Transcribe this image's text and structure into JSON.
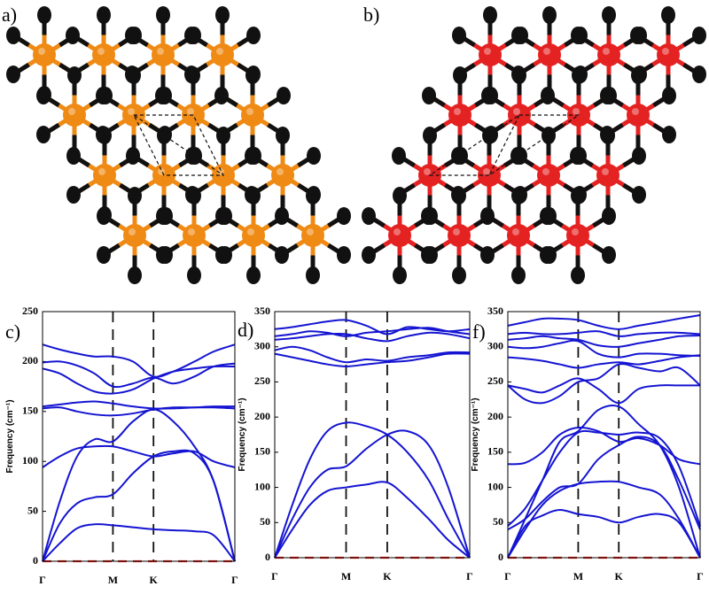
{
  "panels": {
    "a": "a)",
    "b": "b)"
  },
  "chart_data": [
    {
      "type": "line",
      "panel_label": "c)",
      "ylabel": "Frequency (cm⁻¹)",
      "x": [
        0,
        0.09,
        0.18,
        0.27,
        0.366,
        0.47,
        0.577,
        0.68,
        0.79,
        0.89,
        1
      ],
      "xlim": [
        0,
        1
      ],
      "xticks": [
        {
          "value": 0,
          "label": "Γ"
        },
        {
          "value": 0.366,
          "label": "M"
        },
        {
          "value": 0.577,
          "label": "K"
        },
        {
          "value": 1,
          "label": "Γ"
        }
      ],
      "ylim": [
        0,
        250
      ],
      "yticks": [
        0,
        50,
        100,
        150,
        200,
        250
      ],
      "zero_line_color": "#e8261e",
      "series": [
        {
          "color": "#1414d2",
          "values": [
            0,
            18,
            33,
            37,
            36,
            34,
            32,
            31,
            30,
            26,
            0
          ]
        },
        {
          "color": "#1414d2",
          "values": [
            0,
            38,
            58,
            64,
            67,
            88,
            105,
            110,
            108,
            80,
            0
          ]
        },
        {
          "color": "#1414d2",
          "values": [
            0,
            60,
            105,
            122,
            120,
            140,
            152,
            140,
            115,
            80,
            0
          ]
        },
        {
          "color": "#1414d2",
          "values": [
            94,
            105,
            113,
            115,
            115,
            110,
            105,
            108,
            110,
            100,
            94
          ]
        },
        {
          "color": "#1414d2",
          "values": [
            153,
            154,
            150,
            147,
            146,
            148,
            152,
            154,
            154,
            154,
            153
          ]
        },
        {
          "color": "#1414d2",
          "values": [
            155,
            157,
            159,
            160,
            158,
            155,
            153,
            153,
            154,
            155,
            155
          ]
        },
        {
          "color": "#1414d2",
          "values": [
            193,
            188,
            178,
            170,
            168,
            172,
            183,
            190,
            193,
            195,
            195
          ]
        },
        {
          "color": "#1414d2",
          "values": [
            199,
            200,
            196,
            188,
            175,
            178,
            184,
            178,
            185,
            195,
            198
          ]
        },
        {
          "color": "#1414d2",
          "values": [
            217,
            212,
            208,
            205,
            205,
            200,
            185,
            190,
            200,
            210,
            217
          ]
        }
      ]
    },
    {
      "type": "line",
      "panel_label": "d)",
      "ylabel": "Frequency (cm⁻¹)",
      "x": [
        0,
        0.09,
        0.18,
        0.27,
        0.366,
        0.47,
        0.577,
        0.68,
        0.79,
        0.89,
        1
      ],
      "xlim": [
        0,
        1
      ],
      "xticks": [
        {
          "value": 0,
          "label": "Γ"
        },
        {
          "value": 0.366,
          "label": "M"
        },
        {
          "value": 0.577,
          "label": "K"
        },
        {
          "value": 1,
          "label": "Γ"
        }
      ],
      "ylim": [
        0,
        350
      ],
      "yticks": [
        0,
        50,
        100,
        150,
        200,
        250,
        300,
        350
      ],
      "zero_line_color": "#e8261e",
      "series": [
        {
          "color": "#1414d2",
          "values": [
            0,
            40,
            75,
            95,
            100,
            104,
            107,
            85,
            55,
            25,
            0
          ]
        },
        {
          "color": "#1414d2",
          "values": [
            0,
            55,
            100,
            125,
            130,
            155,
            175,
            180,
            160,
            100,
            0
          ]
        },
        {
          "color": "#1414d2",
          "values": [
            0,
            75,
            140,
            180,
            192,
            187,
            175,
            150,
            110,
            55,
            0
          ]
        },
        {
          "color": "#1414d2",
          "values": [
            290,
            285,
            280,
            275,
            272,
            275,
            278,
            280,
            285,
            290,
            290
          ]
        },
        {
          "color": "#1414d2",
          "values": [
            295,
            300,
            295,
            285,
            278,
            282,
            280,
            285,
            288,
            292,
            292
          ]
        },
        {
          "color": "#1414d2",
          "values": [
            310,
            312,
            315,
            318,
            318,
            312,
            308,
            315,
            320,
            318,
            312
          ]
        },
        {
          "color": "#1414d2",
          "values": [
            315,
            318,
            322,
            320,
            315,
            320,
            322,
            325,
            327,
            322,
            318
          ]
        },
        {
          "color": "#1414d2",
          "values": [
            325,
            328,
            332,
            336,
            338,
            330,
            318,
            328,
            325,
            322,
            325
          ]
        }
      ]
    },
    {
      "type": "line",
      "panel_label": "f)",
      "ylabel": "Frequency (cm⁻¹)",
      "x": [
        0,
        0.09,
        0.18,
        0.27,
        0.366,
        0.47,
        0.577,
        0.68,
        0.79,
        0.89,
        1
      ],
      "xlim": [
        0,
        1
      ],
      "xticks": [
        {
          "value": 0,
          "label": "Γ"
        },
        {
          "value": 0.366,
          "label": "M"
        },
        {
          "value": 0.577,
          "label": "K"
        },
        {
          "value": 1,
          "label": "Γ"
        }
      ],
      "ylim": [
        0,
        350
      ],
      "yticks": [
        0,
        50,
        100,
        150,
        200,
        250,
        300,
        350
      ],
      "zero_line_color": "#e8261e",
      "series": [
        {
          "color": "#1414d2",
          "values": [
            0,
            45,
            60,
            68,
            62,
            58,
            50,
            58,
            62,
            50,
            0
          ]
        },
        {
          "color": "#1414d2",
          "values": [
            0,
            40,
            75,
            95,
            105,
            108,
            108,
            100,
            90,
            55,
            0
          ]
        },
        {
          "color": "#1414d2",
          "values": [
            0,
            55,
            110,
            165,
            180,
            210,
            215,
            190,
            160,
            100,
            0
          ]
        },
        {
          "color": "#1414d2",
          "values": [
            40,
            55,
            80,
            100,
            105,
            140,
            160,
            172,
            160,
            110,
            40
          ]
        },
        {
          "color": "#1414d2",
          "values": [
            45,
            70,
            110,
            150,
            178,
            178,
            175,
            178,
            170,
            130,
            45
          ]
        },
        {
          "color": "#1414d2",
          "values": [
            133,
            135,
            150,
            175,
            185,
            180,
            165,
            170,
            160,
            140,
            133
          ]
        },
        {
          "color": "#1414d2",
          "values": [
            245,
            240,
            235,
            245,
            255,
            240,
            220,
            240,
            245,
            245,
            245
          ]
        },
        {
          "color": "#1414d2",
          "values": [
            245,
            225,
            220,
            230,
            250,
            255,
            275,
            270,
            265,
            270,
            245
          ]
        },
        {
          "color": "#1414d2",
          "values": [
            285,
            283,
            280,
            275,
            270,
            275,
            278,
            275,
            280,
            285,
            288
          ]
        },
        {
          "color": "#1414d2",
          "values": [
            300,
            298,
            300,
            305,
            308,
            290,
            285,
            290,
            290,
            288,
            287
          ]
        },
        {
          "color": "#1414d2",
          "values": [
            310,
            312,
            315,
            312,
            310,
            302,
            300,
            305,
            310,
            315,
            316
          ]
        },
        {
          "color": "#1414d2",
          "values": [
            318,
            320,
            318,
            318,
            320,
            322,
            315,
            318,
            320,
            320,
            318
          ]
        },
        {
          "color": "#1414d2",
          "values": [
            330,
            335,
            340,
            340,
            338,
            330,
            325,
            330,
            335,
            340,
            345
          ]
        }
      ]
    }
  ]
}
